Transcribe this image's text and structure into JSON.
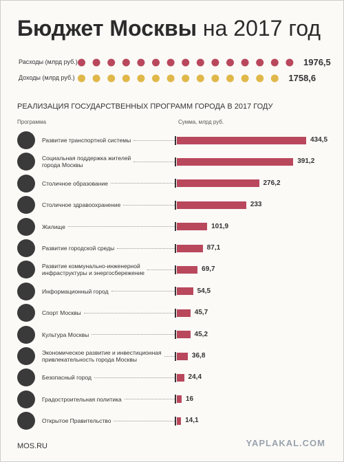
{
  "title": "Бюджет Москвы",
  "title_suffix": "на 2017 год",
  "chart_data": [
    {
      "type": "dot-row",
      "categories": [
        "Расходы (млрд руб.)",
        "Доходы (млрд руб.)"
      ],
      "values": [
        1976.5,
        1758.6
      ],
      "value_labels": [
        "1976,5",
        "1758,6"
      ],
      "colors": [
        "#b9485d",
        "#e0b84a"
      ]
    },
    {
      "type": "bar",
      "title": "РЕАЛИЗАЦИЯ ГОСУДАРСТВЕННЫХ ПРОГРАММ ГОРОДА В 2017 ГОДУ",
      "category_header": "Программа",
      "value_header": "Сумма, млрд руб.",
      "categories": [
        "Развитие транспортной системы",
        "Социальная поддержка жителей\nгорода Москвы",
        "Столичное образование",
        "Столичное здравоохранение",
        "Жилище",
        "Развитие городской среды",
        "Развитие коммунально-инженерной\nинфраструктуры и энергосбережение",
        "Информационный город",
        "Спорт Москвы",
        "Культура Москвы",
        "Экономическое развитие и инвестиционная\nпривлекательность города Москвы",
        "Безопасный город",
        "Градостроительная политика",
        "Открытое Правительство"
      ],
      "values": [
        434.5,
        391.2,
        276.2,
        233,
        101.9,
        87.1,
        69.7,
        54.5,
        45.7,
        45.2,
        36.8,
        24.4,
        16,
        14.1
      ],
      "value_labels": [
        "434,5",
        "391,2",
        "276,2",
        "233",
        "101,9",
        "87,1",
        "69,7",
        "54,5",
        "45,7",
        "45,2",
        "36,8",
        "24,4",
        "16",
        "14,1"
      ],
      "color": "#b9485d"
    }
  ],
  "footer": "MOS.RU",
  "watermark": "YAPLAKAL.COM"
}
